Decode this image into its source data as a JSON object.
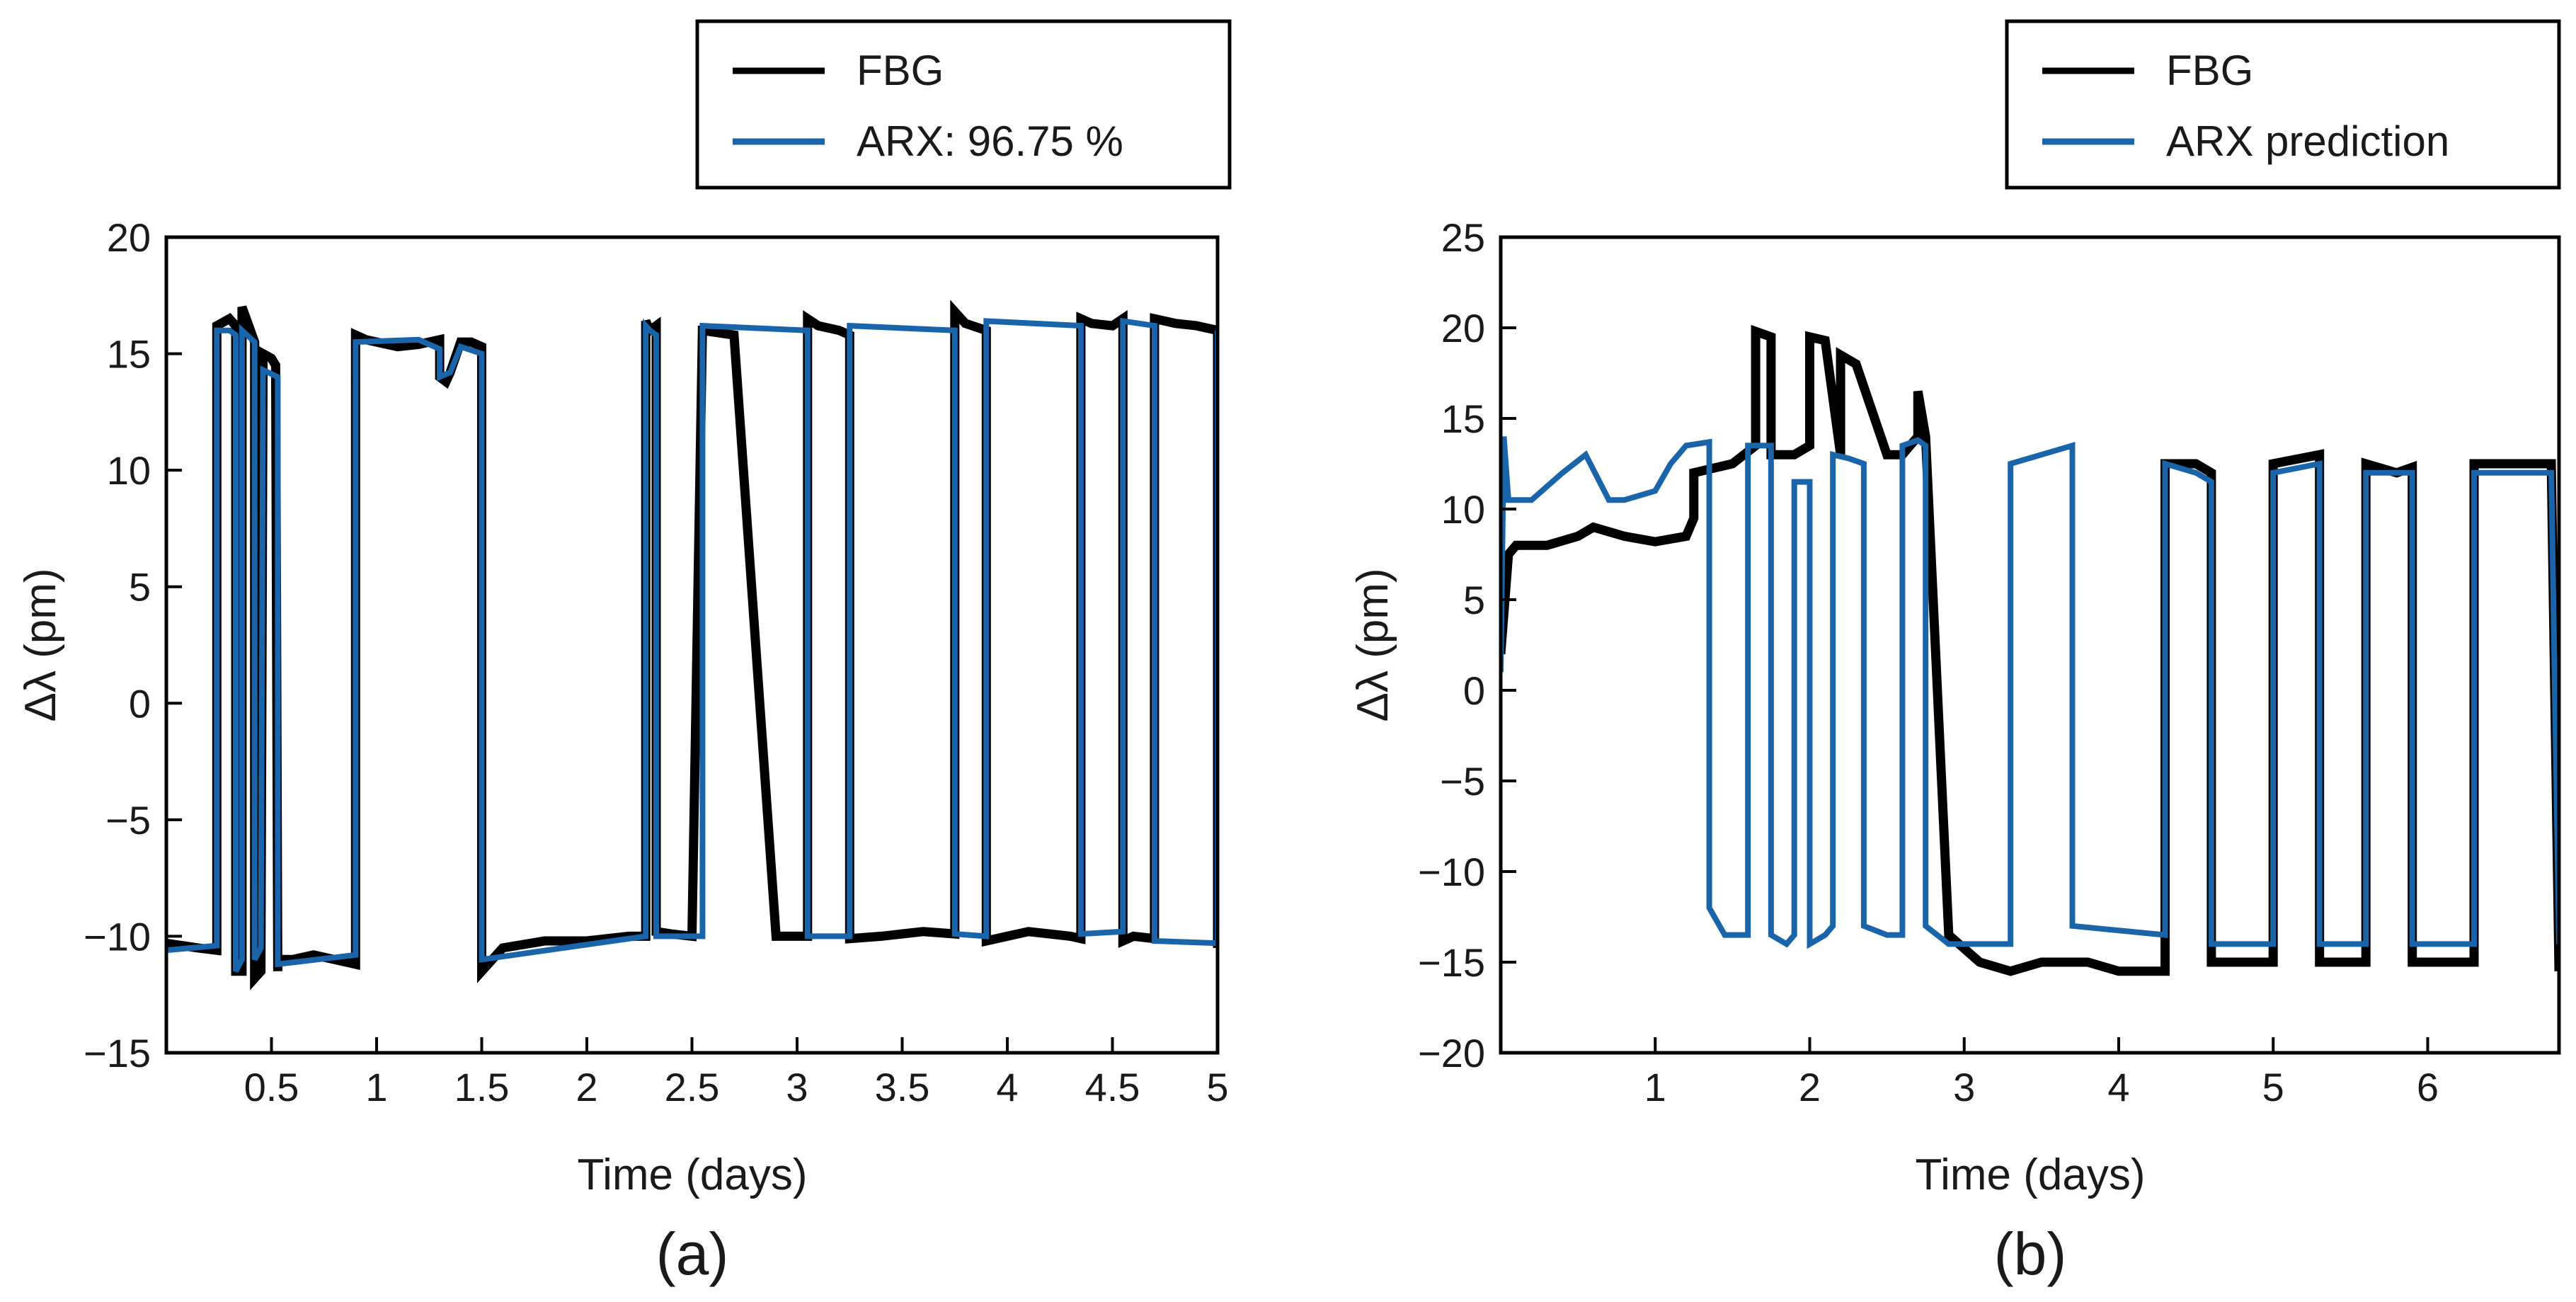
{
  "colors": {
    "fbg": "#000000",
    "arx": "#1a64aa",
    "frame": "#000000",
    "background": "#ffffff"
  },
  "chart_data": [
    {
      "type": "line",
      "panel_label": "(a)",
      "xlabel": "Time (days)",
      "ylabel": "Δλ (pm)",
      "xlim": [
        0,
        5
      ],
      "ylim": [
        -15,
        20
      ],
      "xticks": [
        0.5,
        1,
        1.5,
        2,
        2.5,
        3,
        3.5,
        4,
        4.5,
        5
      ],
      "xtick_labels": [
        "0.5",
        "1",
        "1.5",
        "2",
        "2.5",
        "3",
        "3.5",
        "4",
        "4.5",
        "5"
      ],
      "yticks": [
        -15,
        -10,
        -5,
        0,
        5,
        10,
        15,
        20
      ],
      "ytick_labels": [
        "−15",
        "−10",
        "−5",
        "0",
        "5",
        "10",
        "15",
        "20"
      ],
      "legend_position": "top-right (outside, above plot)",
      "grid": false,
      "series": [
        {
          "name": "FBG",
          "color": "#000000",
          "x": [
            0,
            0.15,
            0.24,
            0.24,
            0.3,
            0.33,
            0.33,
            0.36,
            0.36,
            0.4,
            0.42,
            0.42,
            0.45,
            0.46,
            0.5,
            0.52,
            0.53,
            0.53,
            0.6,
            0.7,
            0.8,
            0.9,
            0.9,
            0.95,
            1.0,
            1.1,
            1.2,
            1.3,
            1.3,
            1.33,
            1.35,
            1.4,
            1.45,
            1.5,
            1.5,
            1.6,
            1.8,
            2.0,
            2.2,
            2.28,
            2.28,
            2.3,
            2.33,
            2.33,
            2.4,
            2.5,
            2.55,
            2.55,
            2.7,
            2.9,
            3.05,
            3.05,
            3.1,
            3.2,
            3.25,
            3.25,
            3.4,
            3.6,
            3.75,
            3.75,
            3.78,
            3.8,
            3.9,
            3.9,
            4.0,
            4.1,
            4.2,
            4.3,
            4.35,
            4.35,
            4.4,
            4.5,
            4.55,
            4.55,
            4.6,
            4.7,
            4.7,
            4.8,
            4.9,
            5.0,
            5.0
          ],
          "y": [
            -10.3,
            -10.5,
            -10.6,
            16.2,
            16.5,
            16.2,
            -11.5,
            -11.5,
            17.0,
            16.0,
            15.5,
            -11.8,
            -11.5,
            15.0,
            14.8,
            14.5,
            -11.5,
            -11.0,
            -11.0,
            -10.8,
            -11.0,
            -11.2,
            15.8,
            15.6,
            15.5,
            15.3,
            15.4,
            15.6,
            14.0,
            13.8,
            14.2,
            15.5,
            15.5,
            15.3,
            -11.5,
            -10.5,
            -10.2,
            -10.2,
            -10.0,
            -10.0,
            16.4,
            16.0,
            16.2,
            -9.8,
            -9.9,
            -10.0,
            16.2,
            16.0,
            15.8,
            -10.0,
            -10.0,
            16.5,
            16.2,
            16.0,
            15.8,
            -10.1,
            -10.0,
            -9.8,
            -9.9,
            16.8,
            16.5,
            16.3,
            16.0,
            -10.2,
            -10.0,
            -9.8,
            -9.9,
            -10.0,
            -10.1,
            16.5,
            16.3,
            16.2,
            16.5,
            -10.2,
            -10.0,
            -10.1,
            16.5,
            16.3,
            16.2,
            16.0,
            -10.5
          ]
        },
        {
          "name": "ARX: 96.75 %",
          "color": "#1a64aa",
          "x": [
            0,
            0.24,
            0.24,
            0.3,
            0.33,
            0.33,
            0.36,
            0.36,
            0.42,
            0.42,
            0.45,
            0.46,
            0.53,
            0.53,
            0.9,
            0.9,
            1.2,
            1.3,
            1.3,
            1.35,
            1.4,
            1.5,
            1.5,
            2.28,
            2.28,
            2.3,
            2.33,
            2.33,
            2.55,
            2.55,
            3.05,
            3.05,
            3.25,
            3.25,
            3.75,
            3.75,
            3.9,
            3.9,
            4.35,
            4.35,
            4.55,
            4.55,
            4.7,
            4.7,
            5.0,
            5.0
          ],
          "y": [
            -10.6,
            -10.4,
            16.0,
            16.0,
            15.8,
            -11.5,
            -11.0,
            16.0,
            15.5,
            -11.0,
            -10.5,
            14.3,
            14.0,
            -11.2,
            -10.8,
            15.5,
            15.6,
            15.2,
            14.0,
            14.2,
            15.3,
            15.0,
            -11.0,
            -10.0,
            16.2,
            16.0,
            15.8,
            -10.0,
            -10.0,
            16.2,
            16.0,
            -10.0,
            -10.0,
            16.2,
            16.0,
            -9.9,
            -10.0,
            16.4,
            16.2,
            -9.9,
            -9.8,
            16.4,
            16.2,
            -10.2,
            -10.3,
            16.0
          ]
        }
      ]
    },
    {
      "type": "line",
      "panel_label": "(b)",
      "xlabel": "Time (days)",
      "ylabel": "Δλ (pm)",
      "xlim": [
        0,
        6.85
      ],
      "ylim": [
        -20,
        25
      ],
      "xticks": [
        1,
        2,
        3,
        4,
        5,
        6
      ],
      "xtick_labels": [
        "1",
        "2",
        "3",
        "4",
        "5",
        "6"
      ],
      "yticks": [
        -20,
        -15,
        -10,
        -5,
        0,
        5,
        10,
        15,
        20,
        25
      ],
      "ytick_labels": [
        "−20",
        "−15",
        "−10",
        "−5",
        "0",
        "5",
        "10",
        "15",
        "20",
        "25"
      ],
      "legend_position": "top-right (outside, above plot)",
      "grid": false,
      "series": [
        {
          "name": "FBG",
          "color": "#000000",
          "x": [
            0,
            0.05,
            0.1,
            0.3,
            0.5,
            0.6,
            0.8,
            1.0,
            1.2,
            1.25,
            1.25,
            1.5,
            1.65,
            1.65,
            1.75,
            1.75,
            1.9,
            2.0,
            2.0,
            2.1,
            2.2,
            2.2,
            2.3,
            2.5,
            2.6,
            2.7,
            2.7,
            2.75,
            2.9,
            3.1,
            3.3,
            3.5,
            3.7,
            3.8,
            4.0,
            4.3,
            4.3,
            4.5,
            4.6,
            4.6,
            4.8,
            5.0,
            5.0,
            5.3,
            5.3,
            5.5,
            5.6,
            5.6,
            5.8,
            5.9,
            5.9,
            6.2,
            6.3,
            6.3,
            6.8,
            6.85
          ],
          "y": [
            2,
            7.5,
            8.0,
            8.0,
            8.5,
            9.0,
            8.5,
            8.2,
            8.5,
            9.5,
            12.0,
            12.5,
            13.5,
            19.8,
            19.5,
            13.0,
            13.0,
            13.5,
            19.5,
            19.3,
            13.0,
            18.5,
            18.0,
            13.0,
            13.0,
            14.0,
            16.5,
            14.0,
            -13.5,
            -15.0,
            -15.5,
            -15.0,
            -15.0,
            -15.0,
            -15.5,
            -15.5,
            12.5,
            12.5,
            12.0,
            -15.0,
            -15.0,
            -15.0,
            12.5,
            13.0,
            -15.0,
            -15.0,
            -15.0,
            12.5,
            12.0,
            12.3,
            -15.0,
            -15.0,
            -15.0,
            12.5,
            12.5,
            -15.5
          ]
        },
        {
          "name": "ARX prediction",
          "color": "#1a64aa",
          "x": [
            0,
            0.02,
            0.05,
            0.2,
            0.4,
            0.55,
            0.7,
            0.8,
            1.0,
            1.1,
            1.2,
            1.35,
            1.35,
            1.45,
            1.6,
            1.6,
            1.7,
            1.75,
            1.75,
            1.85,
            1.9,
            1.9,
            2.0,
            2.0,
            2.1,
            2.15,
            2.15,
            2.25,
            2.35,
            2.35,
            2.5,
            2.6,
            2.6,
            2.7,
            2.75,
            2.75,
            2.9,
            3.3,
            3.3,
            3.5,
            3.7,
            3.7,
            4.3,
            4.3,
            4.5,
            4.6,
            4.6,
            4.8,
            5.0,
            5.0,
            5.3,
            5.3,
            5.5,
            5.6,
            5.6,
            5.8,
            5.9,
            5.9,
            6.2,
            6.3,
            6.3,
            6.8,
            6.85
          ],
          "y": [
            1,
            14,
            10.5,
            10.5,
            12.0,
            13.0,
            10.5,
            10.5,
            11.0,
            12.5,
            13.5,
            13.7,
            -12.0,
            -13.5,
            -13.5,
            13.5,
            13.5,
            13.5,
            -13.5,
            -14.0,
            -13.5,
            11.5,
            11.5,
            -14.0,
            -13.5,
            -13.0,
            13.0,
            12.8,
            12.5,
            -13.0,
            -13.5,
            -13.5,
            13.5,
            13.8,
            13.5,
            -13.0,
            -14.0,
            -14.0,
            12.5,
            13.0,
            13.5,
            -13.0,
            -13.5,
            12.5,
            12.0,
            11.5,
            -14.0,
            -14.0,
            -14.0,
            12.0,
            12.5,
            -14.0,
            -14.0,
            -14.0,
            12.0,
            12.0,
            12.0,
            -14.0,
            -14.0,
            -14.0,
            12.0,
            12.0,
            -14.0
          ]
        }
      ]
    }
  ]
}
